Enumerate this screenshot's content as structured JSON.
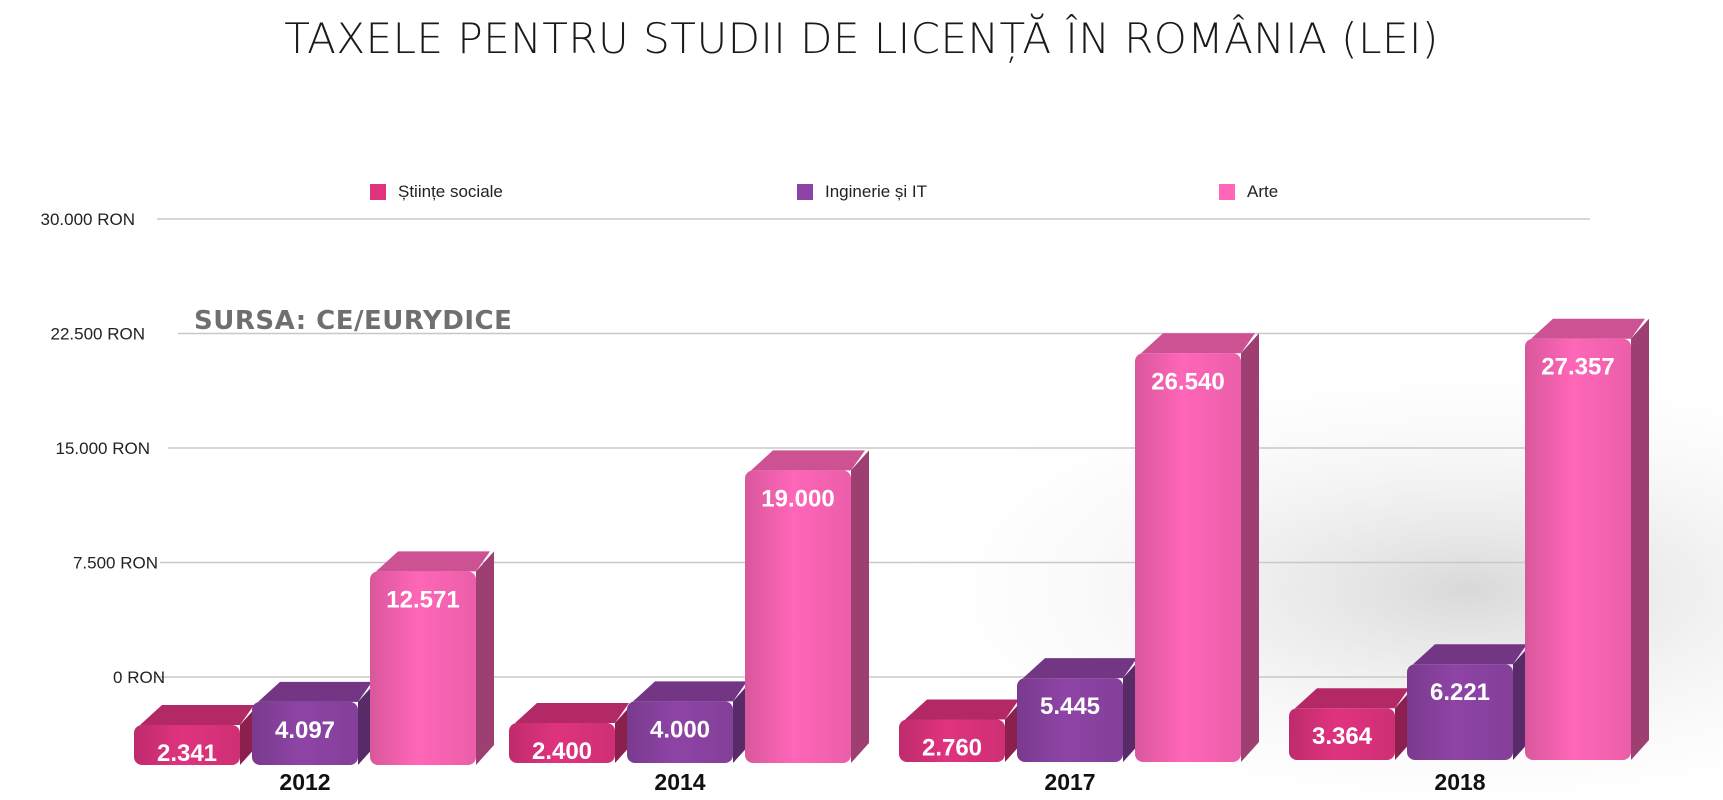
{
  "chart_data": {
    "type": "bar",
    "title": "TAXELE PENTRU STUDII DE LICENȚĂ ÎN ROMÂNIA (LEI)",
    "source_note": "SURSA: CE/EURYDICE",
    "categories": [
      "2012",
      "2014",
      "2017",
      "2018"
    ],
    "series": [
      {
        "name": "Științe sociale",
        "color": "#e0337f",
        "values": [
          2341,
          2400,
          2760,
          3364
        ],
        "value_labels": [
          "2.341",
          "2.400",
          "2.760",
          "3.364"
        ]
      },
      {
        "name": "Inginerie și IT",
        "color": "#8e44a6",
        "values": [
          4097,
          4000,
          5445,
          6221
        ],
        "value_labels": [
          "4.097",
          "4.000",
          "5.445",
          "6.221"
        ]
      },
      {
        "name": "Arte",
        "color": "#ff66b8",
        "values": [
          12571,
          19000,
          26540,
          27357
        ],
        "value_labels": [
          "12.571",
          "19.000",
          "26.540",
          "27.357"
        ]
      }
    ],
    "yticks": [
      0,
      7500,
      15000,
      22500,
      30000
    ],
    "ytick_labels": [
      "0 RON",
      "7.500 RON",
      "15.000 RON",
      "22.500 RON",
      "30.000 RON"
    ],
    "ylim": [
      0,
      30000
    ],
    "xlabel": "",
    "ylabel": "",
    "grid": true,
    "legend_position": "top"
  }
}
